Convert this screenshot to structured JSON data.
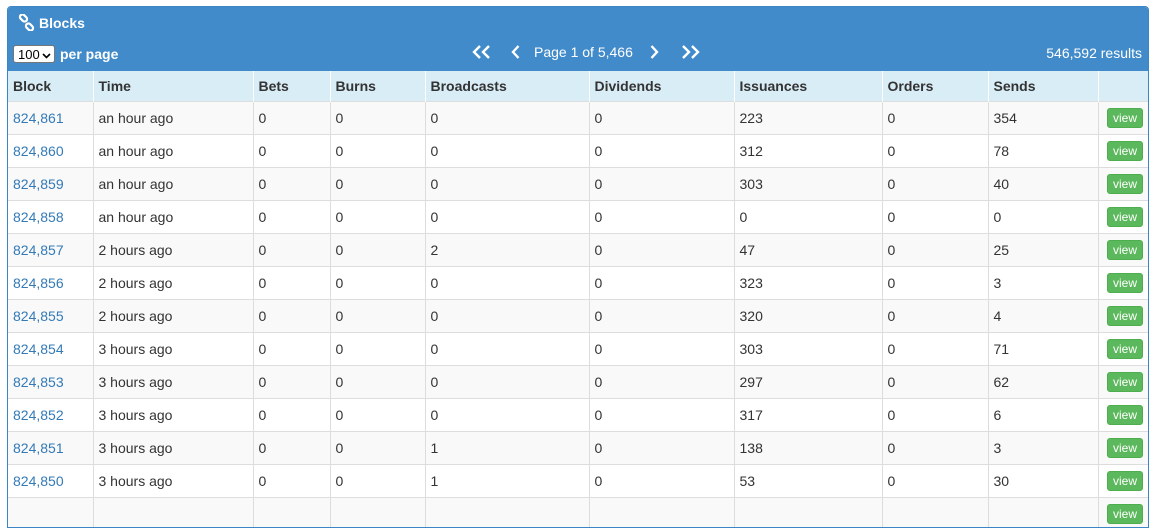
{
  "panel": {
    "title": "Blocks",
    "title_icon": "link-icon"
  },
  "perpage": {
    "value": "100",
    "label": "per page"
  },
  "pager": {
    "first_icon": "double-chevron-left-icon",
    "prev_icon": "chevron-left-icon",
    "label": "Page 1 of 5,466",
    "next_icon": "chevron-right-icon",
    "last_icon": "double-chevron-right-icon"
  },
  "results": "546,592 results",
  "columns": [
    "Block",
    "Time",
    "Bets",
    "Burns",
    "Broadcasts",
    "Dividends",
    "Issuances",
    "Orders",
    "Sends",
    ""
  ],
  "view_label": "view",
  "rows": [
    {
      "block": "824,861",
      "time": "an hour ago",
      "bets": "0",
      "burns": "0",
      "broadcasts": "0",
      "dividends": "0",
      "issuances": "223",
      "orders": "0",
      "sends": "354"
    },
    {
      "block": "824,860",
      "time": "an hour ago",
      "bets": "0",
      "burns": "0",
      "broadcasts": "0",
      "dividends": "0",
      "issuances": "312",
      "orders": "0",
      "sends": "78"
    },
    {
      "block": "824,859",
      "time": "an hour ago",
      "bets": "0",
      "burns": "0",
      "broadcasts": "0",
      "dividends": "0",
      "issuances": "303",
      "orders": "0",
      "sends": "40"
    },
    {
      "block": "824,858",
      "time": "an hour ago",
      "bets": "0",
      "burns": "0",
      "broadcasts": "0",
      "dividends": "0",
      "issuances": "0",
      "orders": "0",
      "sends": "0"
    },
    {
      "block": "824,857",
      "time": "2 hours ago",
      "bets": "0",
      "burns": "0",
      "broadcasts": "2",
      "dividends": "0",
      "issuances": "47",
      "orders": "0",
      "sends": "25"
    },
    {
      "block": "824,856",
      "time": "2 hours ago",
      "bets": "0",
      "burns": "0",
      "broadcasts": "0",
      "dividends": "0",
      "issuances": "323",
      "orders": "0",
      "sends": "3"
    },
    {
      "block": "824,855",
      "time": "2 hours ago",
      "bets": "0",
      "burns": "0",
      "broadcasts": "0",
      "dividends": "0",
      "issuances": "320",
      "orders": "0",
      "sends": "4"
    },
    {
      "block": "824,854",
      "time": "3 hours ago",
      "bets": "0",
      "burns": "0",
      "broadcasts": "0",
      "dividends": "0",
      "issuances": "303",
      "orders": "0",
      "sends": "71"
    },
    {
      "block": "824,853",
      "time": "3 hours ago",
      "bets": "0",
      "burns": "0",
      "broadcasts": "0",
      "dividends": "0",
      "issuances": "297",
      "orders": "0",
      "sends": "62"
    },
    {
      "block": "824,852",
      "time": "3 hours ago",
      "bets": "0",
      "burns": "0",
      "broadcasts": "0",
      "dividends": "0",
      "issuances": "317",
      "orders": "0",
      "sends": "6"
    },
    {
      "block": "824,851",
      "time": "3 hours ago",
      "bets": "0",
      "burns": "0",
      "broadcasts": "1",
      "dividends": "0",
      "issuances": "138",
      "orders": "0",
      "sends": "3"
    },
    {
      "block": "824,850",
      "time": "3 hours ago",
      "bets": "0",
      "burns": "0",
      "broadcasts": "1",
      "dividends": "0",
      "issuances": "53",
      "orders": "0",
      "sends": "30"
    },
    {
      "block": "",
      "time": "",
      "bets": "",
      "burns": "",
      "broadcasts": "",
      "dividends": "",
      "issuances": "",
      "orders": "",
      "sends": ""
    }
  ],
  "colors": {
    "header_blue": "#428bca",
    "thead_bg": "#d9edf7",
    "link": "#337ab7",
    "view_green": "#5cb85c"
  }
}
